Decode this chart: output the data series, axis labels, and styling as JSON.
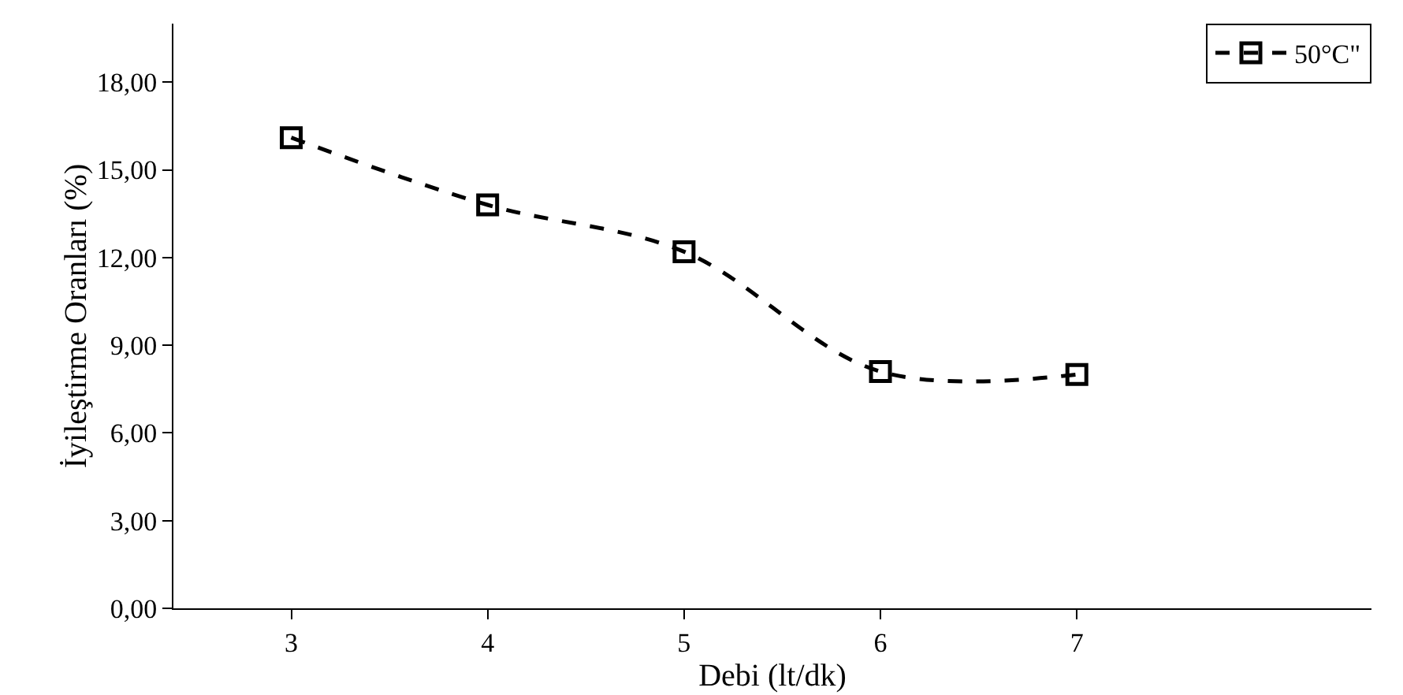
{
  "chart_data": {
    "type": "line",
    "xlabel": "Debi (lt/dk)",
    "ylabel": "İyileştirme Oranları (%)",
    "x": [
      3,
      4,
      5,
      6,
      7
    ],
    "series": [
      {
        "name": "50°C\"",
        "color": "#000000",
        "values": [
          16.1,
          13.8,
          12.2,
          8.1,
          8.0
        ]
      }
    ],
    "xlim": [
      2.4,
      8.5
    ],
    "xticks": [
      3,
      4,
      5,
      6,
      7
    ],
    "ylim": [
      0,
      20
    ],
    "yticks": [
      {
        "value": 0,
        "label": "0,00"
      },
      {
        "value": 3,
        "label": "3,00"
      },
      {
        "value": 6,
        "label": "6,00"
      },
      {
        "value": 9,
        "label": "9,00"
      },
      {
        "value": 12,
        "label": "12,00"
      },
      {
        "value": 15,
        "label": "15,00"
      },
      {
        "value": 18,
        "label": "18,00"
      }
    ],
    "grid": false,
    "legend": "top right",
    "marker": "square",
    "line_style": "dashed"
  }
}
